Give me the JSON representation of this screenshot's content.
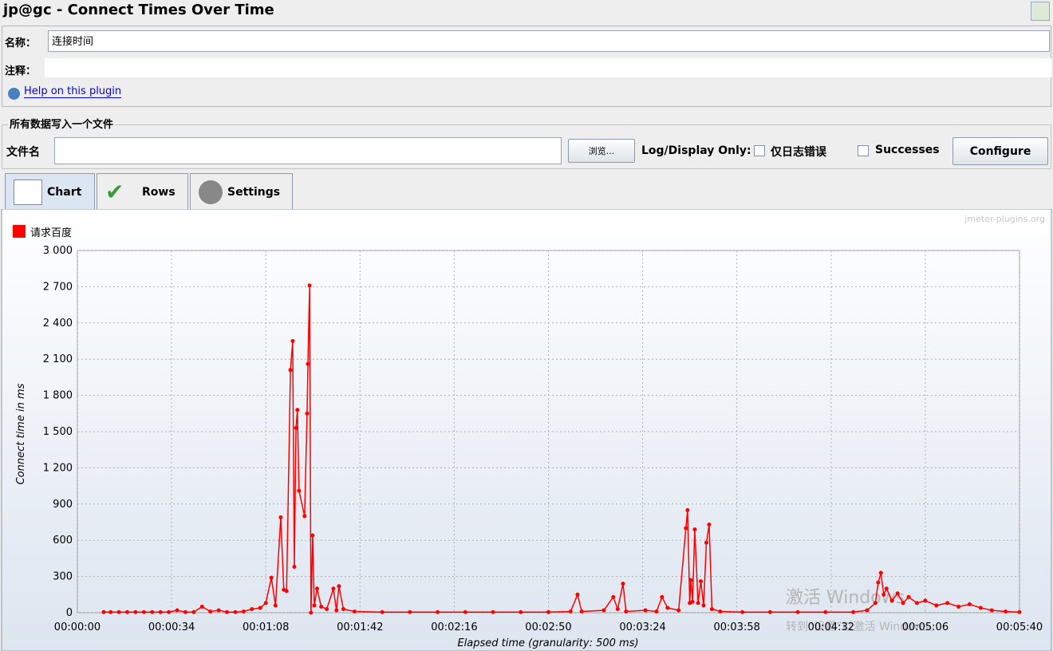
{
  "window": {
    "title": "jp@gc - Connect Times Over Time",
    "name_label": "名称：",
    "name_value": "连接时间",
    "comment_label": "注释：",
    "help_link": "Help on this plugin",
    "file_group": "所有数据写入一个文件",
    "file_label": "文件名",
    "browse": "浏览...",
    "log_label": "Log/Display Only:",
    "errors_only": "仅日志错误",
    "successes": "Successes",
    "configure": "Configure",
    "tabs": [
      "Chart",
      "Rows",
      "Settings"
    ],
    "watermark": "jmeter-plugins.org",
    "activation_title": "激活 Windows",
    "activation_text": "转到“设置”以激活 Windows。"
  },
  "chart_data": {
    "type": "line",
    "xlabel": "Elapsed time (granularity: 500 ms)",
    "ylabel": "Connect time in ms",
    "grid": true,
    "legend": "top-left",
    "x": [
      9.5,
      12,
      15,
      18,
      21,
      24,
      27,
      30,
      33,
      36,
      39,
      42,
      45,
      48,
      51,
      54,
      57,
      60,
      63,
      66,
      68,
      70,
      71.5,
      73.4,
      74.5,
      75.5,
      76.9,
      77.7,
      78.3,
      78.9,
      79.4,
      80,
      82,
      82.9,
      83.2,
      83.8,
      84.3,
      84.9,
      85.5,
      86.5,
      88,
      90,
      92.4,
      93.5,
      94.4,
      96,
      100,
      110,
      120,
      130,
      140,
      150,
      160,
      170,
      178,
      180.5,
      182,
      190,
      193.4,
      195,
      196.9,
      198,
      205,
      209,
      211,
      213,
      217,
      219.6,
      220.2,
      221,
      221.4,
      222,
      222.8,
      224,
      225,
      226,
      227,
      228,
      229,
      232,
      240,
      250,
      260,
      270,
      280,
      285,
      288,
      289,
      290,
      291,
      292,
      294,
      296,
      298,
      300,
      303,
      306,
      310,
      314,
      318,
      322,
      326,
      330,
      335,
      340
    ],
    "series": [
      {
        "name": "请求百度",
        "color": "#ff0000",
        "values": [
          5,
          5,
          5,
          5,
          5,
          5,
          5,
          5,
          5,
          20,
          5,
          5,
          50,
          10,
          20,
          5,
          5,
          10,
          30,
          40,
          80,
          290,
          60,
          790,
          190,
          180,
          2010,
          2250,
          380,
          1530,
          1680,
          1010,
          800,
          1650,
          2060,
          2710,
          0,
          640,
          60,
          200,
          50,
          30,
          200,
          20,
          220,
          30,
          10,
          5,
          5,
          5,
          5,
          5,
          5,
          5,
          10,
          150,
          10,
          20,
          130,
          30,
          240,
          10,
          20,
          10,
          130,
          40,
          20,
          700,
          850,
          80,
          270,
          90,
          690,
          80,
          260,
          60,
          580,
          730,
          30,
          10,
          5,
          5,
          5,
          5,
          5,
          20,
          80,
          250,
          330,
          150,
          200,
          100,
          160,
          80,
          130,
          80,
          100,
          60,
          80,
          50,
          70,
          40,
          20,
          10,
          5
        ]
      }
    ],
    "xlim": [
      0,
      340
    ],
    "xticks": [
      {
        "value": 0,
        "label": "00:00:00"
      },
      {
        "value": 34,
        "label": "00:00:34"
      },
      {
        "value": 68,
        "label": "00:01:08"
      },
      {
        "value": 102,
        "label": "00:01:42"
      },
      {
        "value": 136,
        "label": "00:02:16"
      },
      {
        "value": 170,
        "label": "00:02:50"
      },
      {
        "value": 204,
        "label": "00:03:24"
      },
      {
        "value": 238,
        "label": "00:03:58"
      },
      {
        "value": 272,
        "label": "00:04:32"
      },
      {
        "value": 306,
        "label": "00:05:06"
      },
      {
        "value": 340,
        "label": "00:05:40"
      }
    ],
    "ylim": [
      0,
      3000
    ],
    "yticks": [
      0,
      300,
      600,
      900,
      {
        "value": 1200,
        "label": "1 200"
      },
      {
        "value": 1500,
        "label": "1 500"
      },
      {
        "value": 1800,
        "label": "1 800"
      },
      {
        "value": 2100,
        "label": "2 100"
      },
      {
        "value": 2400,
        "label": "2 400"
      },
      {
        "value": 2700,
        "label": "2 700"
      },
      {
        "value": 3000,
        "label": "3 000"
      }
    ]
  }
}
